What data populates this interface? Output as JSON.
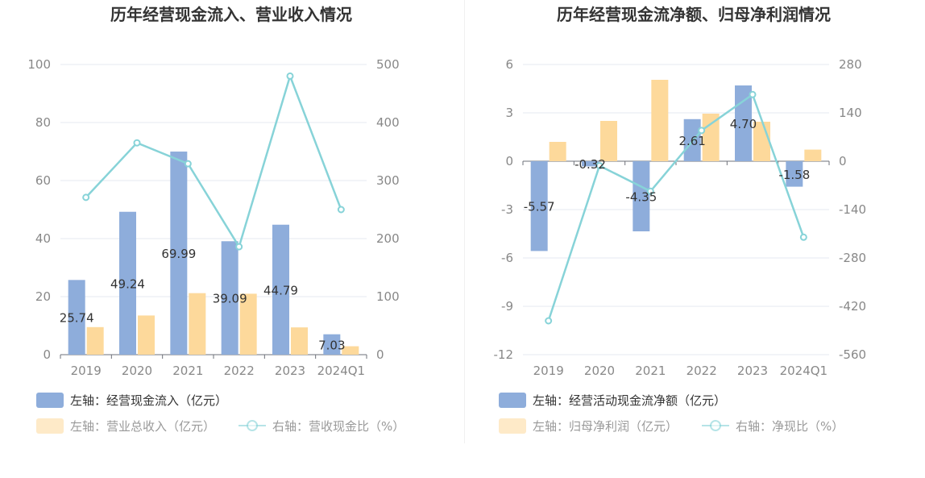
{
  "colors": {
    "primary_bar": "#8eaddb",
    "secondary_bar": "#fdd99b",
    "line": "#87d3d8",
    "grid": "#e4e8f2",
    "axis_text": "#888888",
    "title_text": "#333333",
    "label_text": "#333333"
  },
  "chart_data": [
    {
      "type": "bar",
      "title": "历年经营现金流入、营业收入情况",
      "categories": [
        "2019",
        "2020",
        "2021",
        "2022",
        "2023",
        "2024Q1"
      ],
      "y_left": {
        "min": 0,
        "max": 100,
        "ticks": [
          "0",
          "20",
          "40",
          "60",
          "80",
          "100"
        ]
      },
      "y_right": {
        "min": 0,
        "max": 500,
        "ticks": [
          "0",
          "100",
          "200",
          "300",
          "400",
          "500"
        ]
      },
      "series": [
        {
          "name": "左轴：经营现金流入（亿元）",
          "type": "bar",
          "axis": "left",
          "values": [
            25.74,
            49.24,
            69.99,
            39.09,
            44.79,
            7.03
          ],
          "labels": [
            "25.74",
            "49.24",
            "69.99",
            "39.09",
            "44.79",
            "7.03"
          ]
        },
        {
          "name": "左轴：营业总收入（亿元）",
          "type": "bar",
          "axis": "left",
          "values": [
            9.5,
            13.5,
            21.2,
            21.0,
            9.4,
            2.9
          ]
        },
        {
          "name": "右轴：营收现金比（%）",
          "type": "line",
          "axis": "right",
          "values": [
            271,
            365,
            329,
            186,
            480,
            250
          ]
        }
      ]
    },
    {
      "type": "bar",
      "title": "历年经营现金流净额、归母净利润情况",
      "categories": [
        "2019",
        "2020",
        "2021",
        "2022",
        "2023",
        "2024Q1"
      ],
      "y_left": {
        "min": -12,
        "max": 6,
        "ticks": [
          "-12",
          "-9",
          "-6",
          "-3",
          "0",
          "3",
          "6"
        ]
      },
      "y_right": {
        "min": -560,
        "max": 280,
        "ticks": [
          "-560",
          "-420",
          "-280",
          "-140",
          "0",
          "140",
          "280"
        ]
      },
      "series": [
        {
          "name": "左轴：经营活动现金流净额（亿元）",
          "type": "bar",
          "axis": "left",
          "values": [
            -5.57,
            -0.32,
            -4.35,
            2.61,
            4.7,
            -1.58
          ],
          "labels": [
            "-5.57",
            "-0.32",
            "-4.35",
            "2.61",
            "4.70",
            "-1.58"
          ]
        },
        {
          "name": "左轴：归母净利润（亿元）",
          "type": "bar",
          "axis": "left",
          "values": [
            1.2,
            2.5,
            5.05,
            2.95,
            2.45,
            0.72
          ]
        },
        {
          "name": "右轴：净现比（%）",
          "type": "line",
          "axis": "right",
          "values": [
            -462,
            -13,
            -87,
            89,
            193,
            -220
          ]
        }
      ]
    }
  ]
}
